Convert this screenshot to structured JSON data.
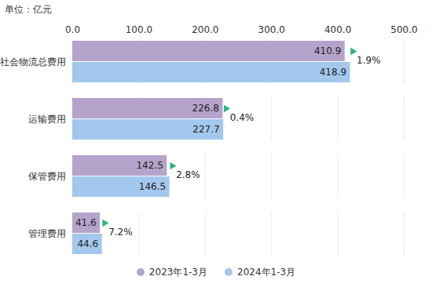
{
  "chart_data": {
    "type": "bar",
    "orientation": "horizontal",
    "subtitle": "单位：亿元",
    "categories": [
      "社会物流总费用",
      "运输费用",
      "保管费用",
      "管理费用"
    ],
    "series": [
      {
        "name": "2023年1-3月",
        "color": "#b5a3cb",
        "values": [
          410.9,
          226.8,
          142.5,
          41.6
        ]
      },
      {
        "name": "2024年1-3月",
        "color": "#a3c8ee",
        "values": [
          418.9,
          227.7,
          146.5,
          44.6
        ]
      }
    ],
    "xlim": [
      0,
      500
    ],
    "xticks": [
      {
        "value": 0,
        "label": "0.0"
      },
      {
        "value": 100,
        "label": "100.0"
      },
      {
        "value": 200,
        "label": "200.0"
      },
      {
        "value": 300,
        "label": "300.0"
      },
      {
        "value": 400,
        "label": "400.0"
      },
      {
        "value": 500,
        "label": "500.0"
      }
    ],
    "grid": true,
    "data_labels": true,
    "legend": "bottom",
    "annotations": [
      "1.9%",
      "0.4%",
      "2.8%",
      "7.2%"
    ]
  }
}
